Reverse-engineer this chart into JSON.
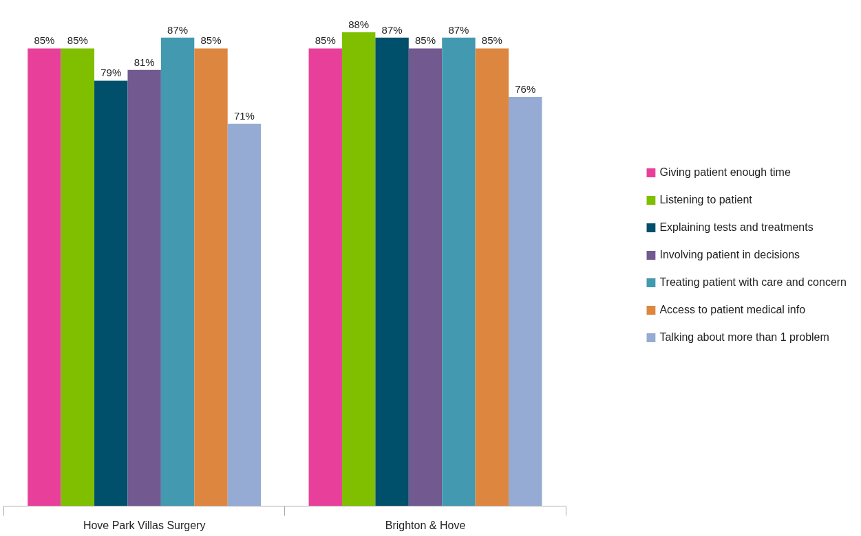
{
  "chart_data": {
    "type": "bar",
    "categories": [
      "Hove Park Villas Surgery",
      "Brighton & Hove"
    ],
    "series": [
      {
        "name": "Giving patient enough time",
        "color": "#e8409a",
        "values": [
          85,
          85
        ],
        "value_labels": [
          "85%",
          "85%"
        ]
      },
      {
        "name": "Listening to patient",
        "color": "#7fbf00",
        "values": [
          85,
          88
        ],
        "value_labels": [
          "85%",
          "88%"
        ]
      },
      {
        "name": "Explaining tests and treatments",
        "color": "#004f6b",
        "values": [
          79,
          87
        ],
        "value_labels": [
          "79%",
          "87%"
        ]
      },
      {
        "name": "Involving patient in decisions",
        "color": "#72598f",
        "values": [
          81,
          85
        ],
        "value_labels": [
          "81%",
          "85%"
        ]
      },
      {
        "name": "Treating patient with care and concern",
        "color": "#4299b0",
        "values": [
          87,
          87
        ],
        "value_labels": [
          "87%",
          "87%"
        ]
      },
      {
        "name": "Access to patient medical info",
        "color": "#dd8640",
        "values": [
          85,
          85
        ],
        "value_labels": [
          "85%",
          "85%"
        ]
      },
      {
        "name": "Talking about more than 1 problem",
        "color": "#95abd3",
        "values": [
          71,
          76
        ],
        "value_labels": [
          "71%",
          "76%"
        ]
      }
    ],
    "legend": "right",
    "grid": false
  }
}
